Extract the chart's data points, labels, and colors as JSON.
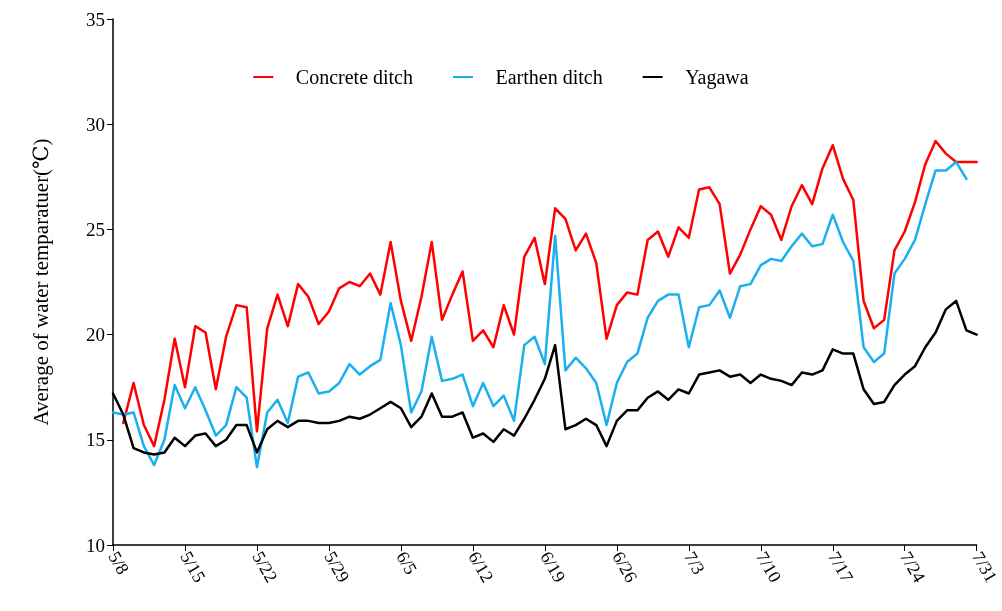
{
  "chart_data": {
    "type": "line",
    "ylabel": "Average of water temparatuer(℃)",
    "categories": [
      "5/8",
      null,
      null,
      null,
      null,
      null,
      null,
      "5/15",
      null,
      null,
      null,
      null,
      null,
      null,
      "5/22",
      null,
      null,
      null,
      null,
      null,
      null,
      "5/29",
      null,
      null,
      null,
      null,
      null,
      null,
      "6/5",
      null,
      null,
      null,
      null,
      null,
      null,
      "6/12",
      null,
      null,
      null,
      null,
      null,
      null,
      "6/19",
      null,
      null,
      null,
      null,
      null,
      null,
      "6/26",
      null,
      null,
      null,
      null,
      null,
      null,
      "7/3",
      null,
      null,
      null,
      null,
      null,
      null,
      "7/10",
      null,
      null,
      null,
      null,
      null,
      null,
      "7/17",
      null,
      null,
      null,
      null,
      null,
      null,
      "7/24",
      null,
      null,
      null,
      null,
      null,
      null,
      "7/31"
    ],
    "series": [
      {
        "name": "Concrete ditch",
        "color": "#ff0000",
        "values": [
          null,
          15.8,
          17.7,
          15.7,
          14.7,
          16.9,
          19.8,
          17.5,
          20.4,
          20.1,
          17.4,
          19.9,
          21.4,
          21.3,
          15.4,
          20.3,
          21.9,
          20.4,
          22.4,
          21.8,
          20.5,
          21.1,
          22.2,
          22.5,
          22.3,
          22.9,
          21.9,
          24.4,
          21.6,
          19.7,
          21.8,
          24.4,
          20.7,
          21.9,
          23.0,
          19.7,
          20.2,
          19.4,
          21.4,
          20.0,
          23.7,
          24.6,
          22.4,
          26.0,
          25.5,
          24.0,
          24.8,
          23.4,
          19.8,
          21.4,
          22.0,
          21.9,
          24.5,
          24.9,
          23.7,
          25.1,
          24.6,
          26.9,
          27.0,
          26.2,
          22.9,
          23.8,
          25.0,
          26.1,
          25.7,
          24.5,
          26.1,
          27.1,
          26.2,
          27.9,
          29.0,
          27.4,
          26.4,
          21.6,
          20.3,
          20.7,
          24.0,
          24.9,
          26.3,
          28.1,
          29.2,
          28.6,
          28.2,
          28.2,
          28.2
        ]
      },
      {
        "name": "Earthen ditch",
        "color": "#1ab0ef",
        "values": [
          16.3,
          16.2,
          16.3,
          14.7,
          13.8,
          15.0,
          17.6,
          16.5,
          17.5,
          16.4,
          15.2,
          15.7,
          17.5,
          17.0,
          13.7,
          16.3,
          16.9,
          15.8,
          18.0,
          18.2,
          17.2,
          17.3,
          17.7,
          18.6,
          18.1,
          18.5,
          18.8,
          21.5,
          19.5,
          16.3,
          17.3,
          19.9,
          17.8,
          17.9,
          18.1,
          16.6,
          17.7,
          16.6,
          17.1,
          15.9,
          19.5,
          19.9,
          18.6,
          24.7,
          18.3,
          18.9,
          18.4,
          17.7,
          15.7,
          17.7,
          18.7,
          19.1,
          20.8,
          21.6,
          21.9,
          21.9,
          19.4,
          21.3,
          21.4,
          22.1,
          20.8,
          22.3,
          22.4,
          23.3,
          23.6,
          23.5,
          24.2,
          24.8,
          24.2,
          24.3,
          25.7,
          24.4,
          23.5,
          19.4,
          18.7,
          19.1,
          22.9,
          23.6,
          24.5,
          26.2,
          27.8,
          27.8,
          28.2,
          27.4,
          null
        ]
      },
      {
        "name": "Yagawa",
        "color": "#000000",
        "values": [
          17.2,
          16.2,
          14.6,
          14.4,
          14.3,
          14.4,
          15.1,
          14.7,
          15.2,
          15.3,
          14.7,
          15.0,
          15.7,
          15.7,
          14.4,
          15.5,
          15.9,
          15.6,
          15.9,
          15.9,
          15.8,
          15.8,
          15.9,
          16.1,
          16.0,
          16.2,
          16.5,
          16.8,
          16.5,
          15.6,
          16.1,
          17.2,
          16.1,
          16.1,
          16.3,
          15.1,
          15.3,
          14.9,
          15.5,
          15.2,
          16.0,
          16.9,
          17.9,
          19.5,
          15.5,
          15.7,
          16.0,
          15.7,
          14.7,
          15.9,
          16.4,
          16.4,
          17.0,
          17.3,
          16.9,
          17.4,
          17.2,
          18.1,
          18.2,
          18.3,
          18.0,
          18.1,
          17.7,
          18.1,
          17.9,
          17.8,
          17.6,
          18.2,
          18.1,
          18.3,
          19.3,
          19.1,
          19.1,
          17.4,
          16.7,
          16.8,
          17.6,
          18.1,
          18.5,
          19.4,
          20.1,
          21.2,
          21.6,
          20.2,
          20.0
        ]
      }
    ],
    "ylim": [
      10,
      35
    ],
    "yticks": [
      10,
      15,
      20,
      25,
      30,
      35
    ],
    "legend": "top",
    "marker": "none",
    "line_style": "solid",
    "grid": false
  }
}
